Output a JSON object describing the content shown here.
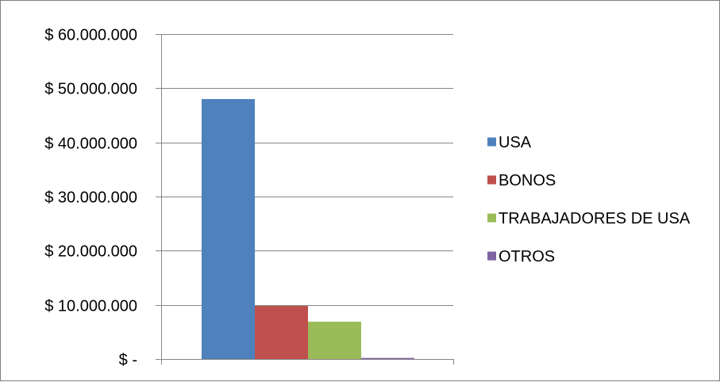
{
  "chart_data": {
    "type": "bar",
    "title": "",
    "xlabel": "",
    "ylabel": "",
    "categories": [
      ""
    ],
    "series": [
      {
        "name": "USA",
        "values": [
          48000000
        ],
        "color": "#4f81bd"
      },
      {
        "name": "BONOS",
        "values": [
          9800000
        ],
        "color": "#c0504d"
      },
      {
        "name": "TRABAJADORES DE USA",
        "values": [
          6900000
        ],
        "color": "#9bbb59"
      },
      {
        "name": "OTROS",
        "values": [
          200000
        ],
        "color": "#8064a2"
      }
    ],
    "ylim": [
      0,
      60000000
    ],
    "yticks": [
      0,
      10000000,
      20000000,
      30000000,
      40000000,
      50000000,
      60000000
    ],
    "ytick_labels": [
      "$ -",
      "$ 10.000.000",
      "$ 20.000.000",
      "$ 30.000.000",
      "$ 40.000.000",
      "$ 50.000.000",
      "$ 60.000.000"
    ],
    "grid": true,
    "legend": "right",
    "colors": {
      "gridline": "#868686",
      "axis": "#868686",
      "border": "#7f7f7f"
    }
  }
}
